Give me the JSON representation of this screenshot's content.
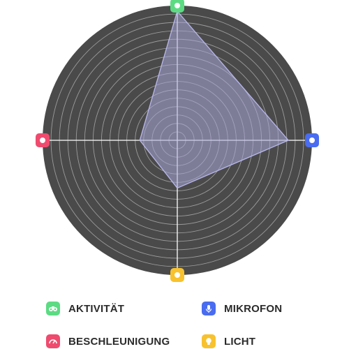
{
  "colors": {
    "background_disc": "#4a4a4a",
    "grid": "#9b9b9b",
    "axis": "#ffffff",
    "area_fill": "#a9a8d9",
    "area_stroke": "#b9b8ec",
    "activity": "#5cdb83",
    "microphone": "#4a6cf0",
    "acceleration": "#ef4b6e",
    "light": "#f7c22e"
  },
  "chart_data": {
    "type": "radar",
    "axes": [
      {
        "key": "activity",
        "label": "AKTIVITÄT",
        "icon": "binoculars-icon",
        "value": 1.0
      },
      {
        "key": "microphone",
        "label": "MIKROFON",
        "icon": "microphone-icon",
        "value": 0.86
      },
      {
        "key": "light",
        "label": "LICHT",
        "icon": "lightbulb-icon",
        "value": 0.37
      },
      {
        "key": "acceleration",
        "label": "BESCHLEUNIGUNG",
        "icon": "speedometer-icon",
        "value": 0.29
      }
    ],
    "range": [
      0,
      1
    ],
    "rings": 16,
    "grid": true,
    "legend_position": "bottom"
  }
}
